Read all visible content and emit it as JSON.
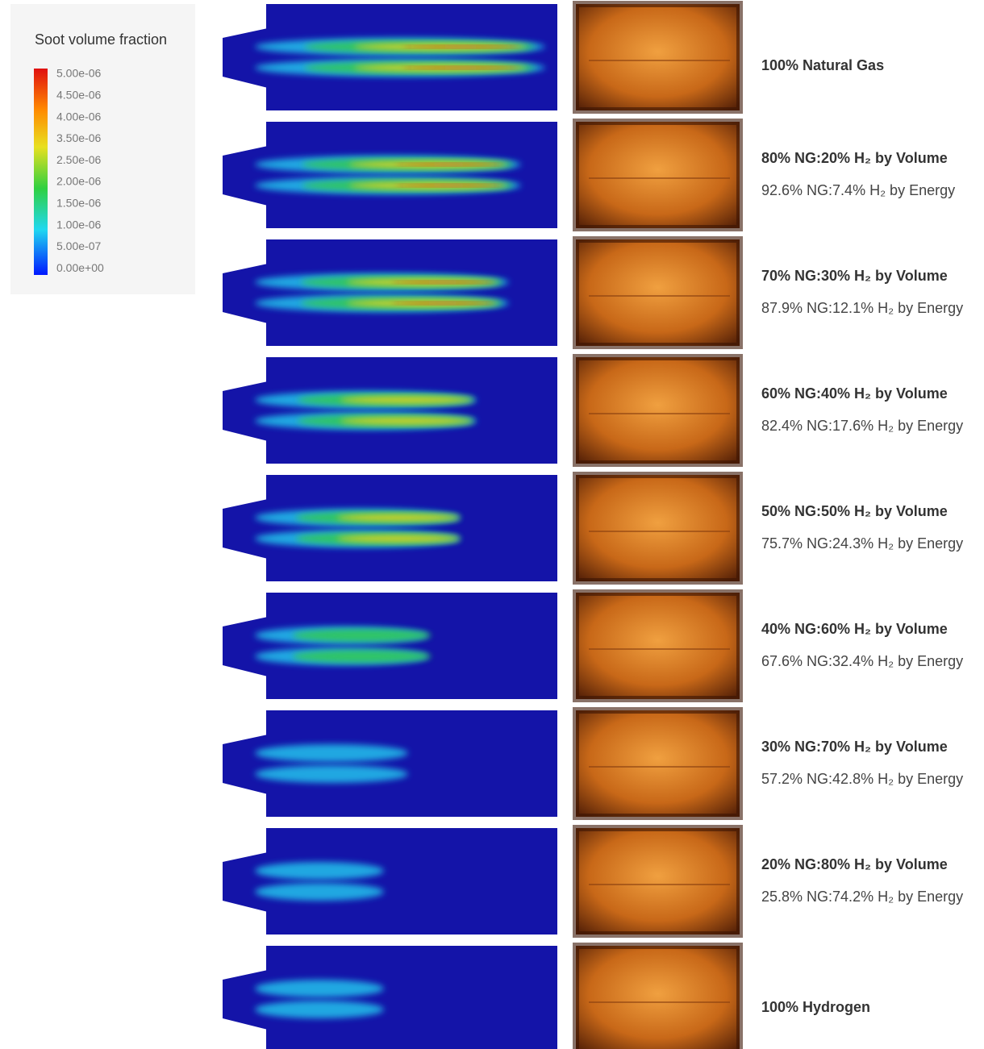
{
  "legend": {
    "title": "Soot volume fraction",
    "ticks": [
      "5.00e-06",
      "4.50e-06",
      "4.00e-06",
      "3.50e-06",
      "2.50e-06",
      "2.00e-06",
      "1.50e-06",
      "1.00e-06",
      "5.00e-07",
      "0.00e+00"
    ]
  },
  "rows": [
    {
      "lines": [
        "100% Natural Gas"
      ]
    },
    {
      "lines": [
        "80% NG:20% H₂ by Volume",
        "92.6% NG:7.4% H₂ by Energy"
      ]
    },
    {
      "lines": [
        "70% NG:30% H₂ by Volume",
        "87.9% NG:12.1% H₂ by Energy"
      ]
    },
    {
      "lines": [
        "60% NG:40% H₂ by Volume",
        "82.4% NG:17.6% H₂ by Energy"
      ]
    },
    {
      "lines": [
        "50% NG:50% H₂ by Volume",
        "75.7% NG:24.3% H₂ by Energy"
      ]
    },
    {
      "lines": [
        "40% NG:60% H₂ by Volume",
        "67.6% NG:32.4% H₂ by Energy"
      ]
    },
    {
      "lines": [
        "30% NG:70% H₂ by Volume",
        "57.2% NG:42.8% H₂ by Energy"
      ]
    },
    {
      "lines": [
        "20% NG:80% H₂ by Volume",
        "25.8% NG:74.2% H₂ by Energy"
      ]
    },
    {
      "lines": [
        "100% Hydrogen"
      ]
    }
  ]
}
